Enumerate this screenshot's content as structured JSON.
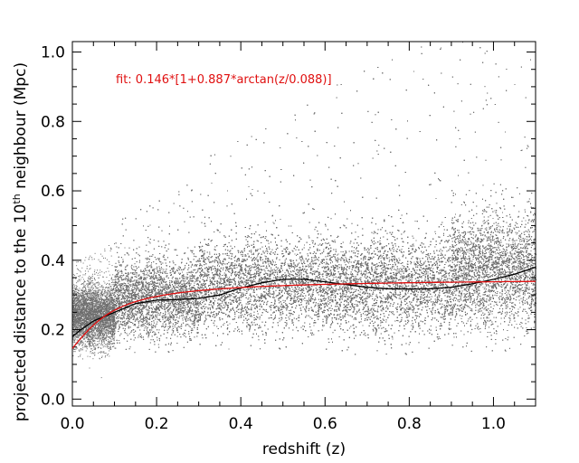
{
  "chart_data": {
    "type": "scatter",
    "title": "",
    "xlabel": "redshift (z)",
    "ylabel_prefix": "projected distance to the 10",
    "ylabel_sup": "th",
    "ylabel_suffix": " neighbour (Mpc)",
    "xlim": [
      0.0,
      1.1
    ],
    "ylim": [
      -0.02,
      1.03
    ],
    "x_ticks": [
      "0.0",
      "0.2",
      "0.4",
      "0.6",
      "0.8",
      "1.0"
    ],
    "x_tick_values": [
      0.0,
      0.2,
      0.4,
      0.6,
      0.8,
      1.0
    ],
    "y_ticks": [
      "0.0",
      "0.2",
      "0.4",
      "0.6",
      "0.8",
      "1.0"
    ],
    "y_tick_values": [
      0.0,
      0.2,
      0.4,
      0.6,
      0.8,
      1.0
    ],
    "grid": false,
    "annotation": "fit: 0.146*[1+0.887*arctan(z/0.088)]",
    "colors": {
      "points": "#6e6e6e",
      "running_median": "#000000",
      "fit": "#e01010",
      "annotation": "#e01010"
    },
    "point_cloud": {
      "description_bands": [
        {
          "z_from": 0.0,
          "z_to": 0.1,
          "y_center": 0.24,
          "y_spread": 0.08
        },
        {
          "z_from": 0.1,
          "z_to": 0.3,
          "y_center": 0.29,
          "y_spread": 0.1
        },
        {
          "z_from": 0.3,
          "z_to": 0.6,
          "y_center": 0.33,
          "y_spread": 0.12
        },
        {
          "z_from": 0.6,
          "z_to": 0.9,
          "y_center": 0.33,
          "y_spread": 0.13
        },
        {
          "z_from": 0.9,
          "z_to": 1.1,
          "y_center": 0.37,
          "y_spread": 0.15
        }
      ]
    },
    "series": [
      {
        "kind": "running-median",
        "x": [
          0.0,
          0.02,
          0.05,
          0.1,
          0.15,
          0.2,
          0.25,
          0.3,
          0.35,
          0.4,
          0.45,
          0.5,
          0.55,
          0.6,
          0.65,
          0.7,
          0.75,
          0.8,
          0.85,
          0.9,
          0.95,
          1.0,
          1.05,
          1.1
        ],
        "y": [
          0.18,
          0.2,
          0.225,
          0.25,
          0.275,
          0.285,
          0.287,
          0.29,
          0.3,
          0.32,
          0.335,
          0.345,
          0.345,
          0.338,
          0.33,
          0.322,
          0.318,
          0.317,
          0.318,
          0.322,
          0.332,
          0.345,
          0.36,
          0.38
        ]
      },
      {
        "kind": "fit",
        "formula": "0.146*[1+0.887*arctan(z/0.088)]",
        "a": 0.146,
        "b": 0.887,
        "c": 0.088
      }
    ]
  }
}
